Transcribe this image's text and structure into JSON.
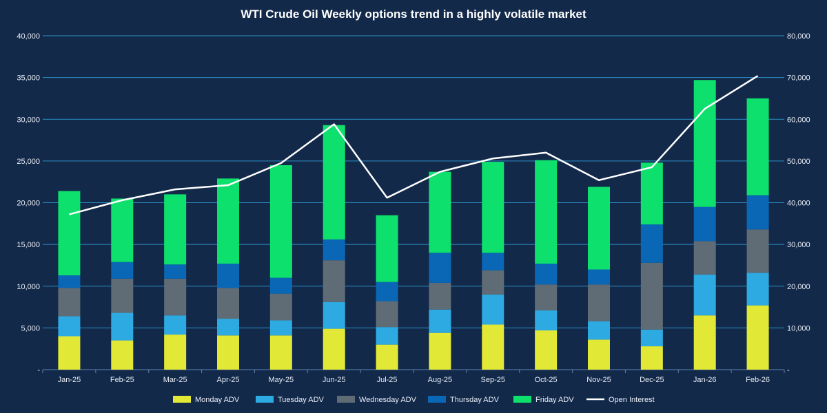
{
  "chart_data": {
    "type": "bar",
    "stacked": true,
    "title": "WTI Crude Oil Weekly options trend in a highly volatile market",
    "categories": [
      "Jan-25",
      "Feb-25",
      "Mar-25",
      "Apr-25",
      "May-25",
      "Jun-25",
      "Jul-25",
      "Aug-25",
      "Sep-25",
      "Oct-25",
      "Nov-25",
      "Dec-25",
      "Jan-26",
      "Feb-26"
    ],
    "series": [
      {
        "name": "Monday ADV",
        "axis": "left",
        "color": "#e2e836",
        "values": [
          4000,
          3500,
          4200,
          4100,
          4100,
          4900,
          3000,
          4400,
          5400,
          4700,
          3600,
          2800,
          6500,
          7700
        ]
      },
      {
        "name": "Tuesday ADV",
        "axis": "left",
        "color": "#2eaae2",
        "values": [
          2400,
          3300,
          2300,
          2000,
          1800,
          3200,
          2100,
          2800,
          3600,
          2400,
          2200,
          2000,
          4900,
          3900
        ]
      },
      {
        "name": "Wednesday ADV",
        "axis": "left",
        "color": "#5f6c76",
        "values": [
          3400,
          4100,
          4400,
          3700,
          3200,
          5000,
          3100,
          3200,
          2900,
          3100,
          4400,
          8000,
          4000,
          5200
        ]
      },
      {
        "name": "Thursday ADV",
        "axis": "left",
        "color": "#0a67b5",
        "values": [
          1500,
          2000,
          1700,
          2900,
          1900,
          2500,
          2300,
          3600,
          2100,
          2500,
          1800,
          4600,
          4100,
          4100
        ]
      },
      {
        "name": "Friday ADV",
        "axis": "left",
        "color": "#0ee06d",
        "values": [
          10100,
          7600,
          8400,
          10200,
          13500,
          13700,
          8000,
          9700,
          10900,
          12400,
          9900,
          7400,
          15200,
          11600
        ]
      },
      {
        "name": "Open Interest",
        "axis": "right",
        "type": "line",
        "color": "#ffffff",
        "values": [
          37200,
          40600,
          43200,
          44200,
          49500,
          58800,
          41200,
          47400,
          50600,
          52000,
          45400,
          48500,
          62500,
          70400
        ]
      }
    ],
    "y_left": {
      "min": 0,
      "max": 40000,
      "step": 5000,
      "ticks": [
        "-",
        "5,000",
        "10,000",
        "15,000",
        "20,000",
        "25,000",
        "30,000",
        "35,000",
        "40,000"
      ]
    },
    "y_right": {
      "min": 0,
      "max": 80000,
      "step": 10000,
      "ticks": [
        "-",
        "10,000",
        "20,000",
        "30,000",
        "40,000",
        "50,000",
        "60,000",
        "70,000",
        "80,000"
      ]
    },
    "grid": true,
    "legend_position": "bottom"
  }
}
